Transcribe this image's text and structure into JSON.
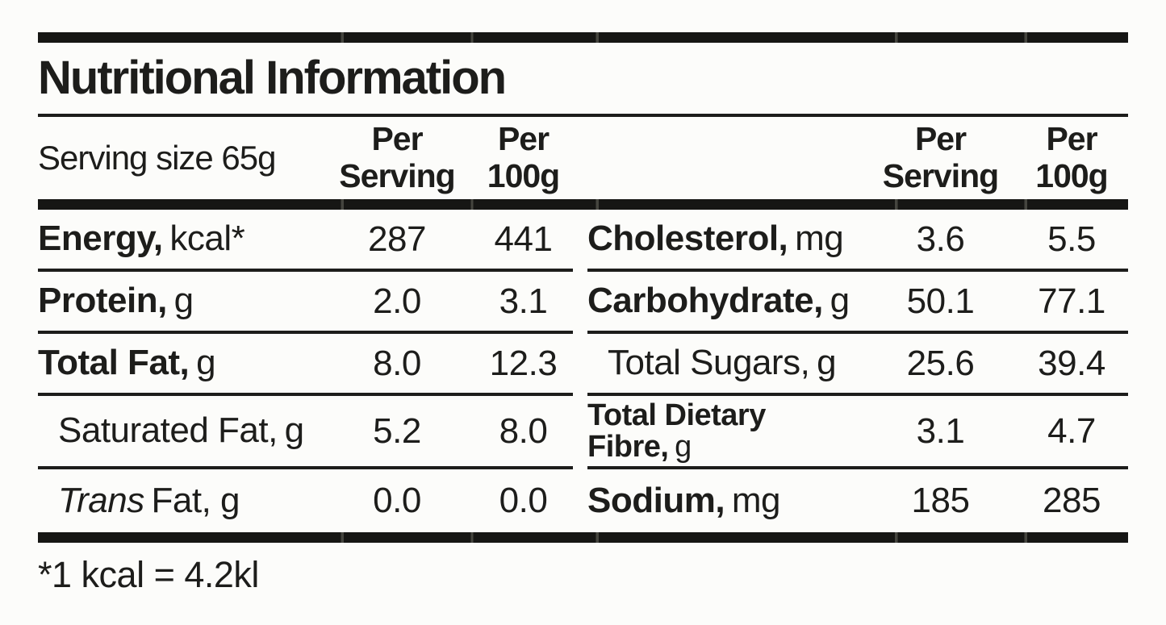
{
  "title": "Nutritional Information",
  "header": {
    "serving_size": "Serving size 65g",
    "per_serving_line1": "Per",
    "per_serving_line2": "Serving",
    "per_100g_line1": "Per",
    "per_100g_line2": "100g"
  },
  "left_rows": [
    {
      "name": "Energy,",
      "unit": "kcal*",
      "per_serving": "287",
      "per_100g": "441"
    },
    {
      "name": "Protein,",
      "unit": "g",
      "per_serving": "2.0",
      "per_100g": "3.1"
    },
    {
      "name": "Total Fat,",
      "unit": "g",
      "per_serving": "8.0",
      "per_100g": "12.3"
    },
    {
      "name": "Saturated Fat,",
      "unit": "g",
      "per_serving": "5.2",
      "per_100g": "8.0"
    },
    {
      "name": "Trans",
      "unit": "Fat, g",
      "per_serving": "0.0",
      "per_100g": "0.0"
    }
  ],
  "right_rows": [
    {
      "name": "Cholesterol,",
      "unit": "mg",
      "per_serving": "3.6",
      "per_100g": "5.5"
    },
    {
      "name": "Carbohydrate,",
      "unit": "g",
      "per_serving": "50.1",
      "per_100g": "77.1"
    },
    {
      "name": "Total Sugars,",
      "unit": "g",
      "per_serving": "25.6",
      "per_100g": "39.4"
    },
    {
      "name": "Total Dietary Fibre,",
      "unit": "g",
      "per_serving": "3.1",
      "per_100g": "4.7"
    },
    {
      "name": "Sodium,",
      "unit": "mg",
      "per_serving": "185",
      "per_100g": "285"
    }
  ],
  "footnote": "*1 kcal = 4.2kl",
  "colors": {
    "text": "#1d1d1b",
    "background": "#fcfcfa",
    "rule": "#1d1d1b",
    "thick_bar": "#161614"
  }
}
